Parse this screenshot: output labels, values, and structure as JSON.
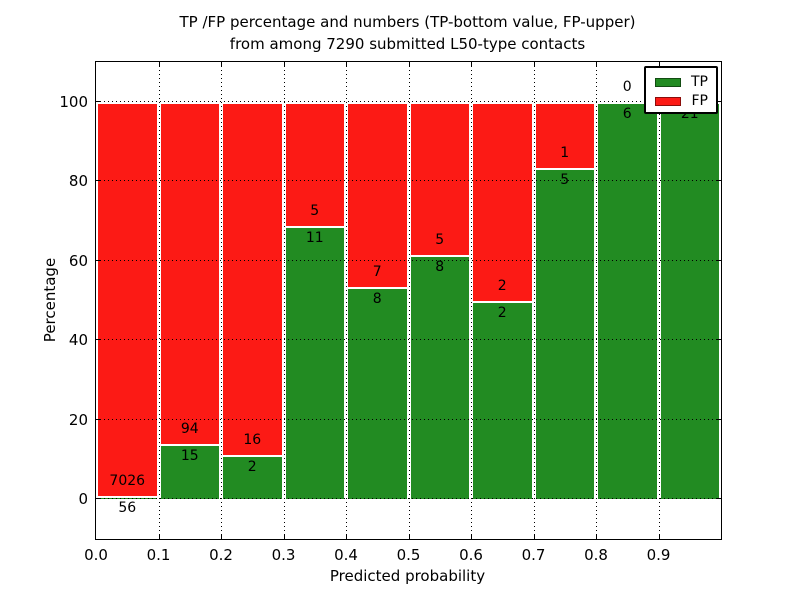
{
  "header": {
    "line1": "TP /FP percentage and numbers (TP-bottom value, FP-upper)",
    "line2": "from among 7290 submitted L50-type contacts"
  },
  "chart_data": {
    "type": "bar",
    "stacked": true,
    "normalized_to": 100,
    "title": "TP /FP percentage and numbers (TP-bottom value, FP-upper) from among 7290 submitted L50-type contacts",
    "xlabel": "Predicted probability",
    "ylabel": "Percentage",
    "x_tick_labels": [
      "0.0",
      "0.1",
      "0.2",
      "0.3",
      "0.4",
      "0.5",
      "0.6",
      "0.7",
      "0.8",
      "0.9"
    ],
    "y_ticks": [
      0,
      20,
      40,
      60,
      80,
      100
    ],
    "xlim": [
      0.0,
      1.0
    ],
    "ylim": [
      -10,
      110
    ],
    "grid": "dotted",
    "legend_position": "upper right",
    "bin_width": 0.1,
    "categories": [
      "0.0-0.1",
      "0.1-0.2",
      "0.2-0.3",
      "0.3-0.4",
      "0.4-0.5",
      "0.5-0.6",
      "0.6-0.7",
      "0.7-0.8",
      "0.8-0.9",
      "0.9-1.0"
    ],
    "series": [
      {
        "name": "TP",
        "color": "#228b22",
        "counts": [
          56,
          15,
          2,
          11,
          8,
          8,
          2,
          5,
          6,
          21
        ],
        "pct_of_bin": [
          0.79,
          13.76,
          11.11,
          68.75,
          53.33,
          61.54,
          50.0,
          83.33,
          100.0,
          100.0
        ]
      },
      {
        "name": "FP",
        "color": "#fc1a15",
        "counts": [
          7026,
          94,
          16,
          5,
          7,
          5,
          2,
          1,
          0,
          0
        ],
        "pct_of_bin": [
          99.21,
          86.24,
          88.89,
          31.25,
          46.67,
          38.46,
          50.0,
          16.67,
          0.0,
          0.0
        ]
      }
    ],
    "bar_edge_color": "#ffffff"
  },
  "legend": {
    "items": [
      {
        "label": "TP",
        "color": "#228b22"
      },
      {
        "label": "FP",
        "color": "#fc1a15"
      }
    ]
  }
}
